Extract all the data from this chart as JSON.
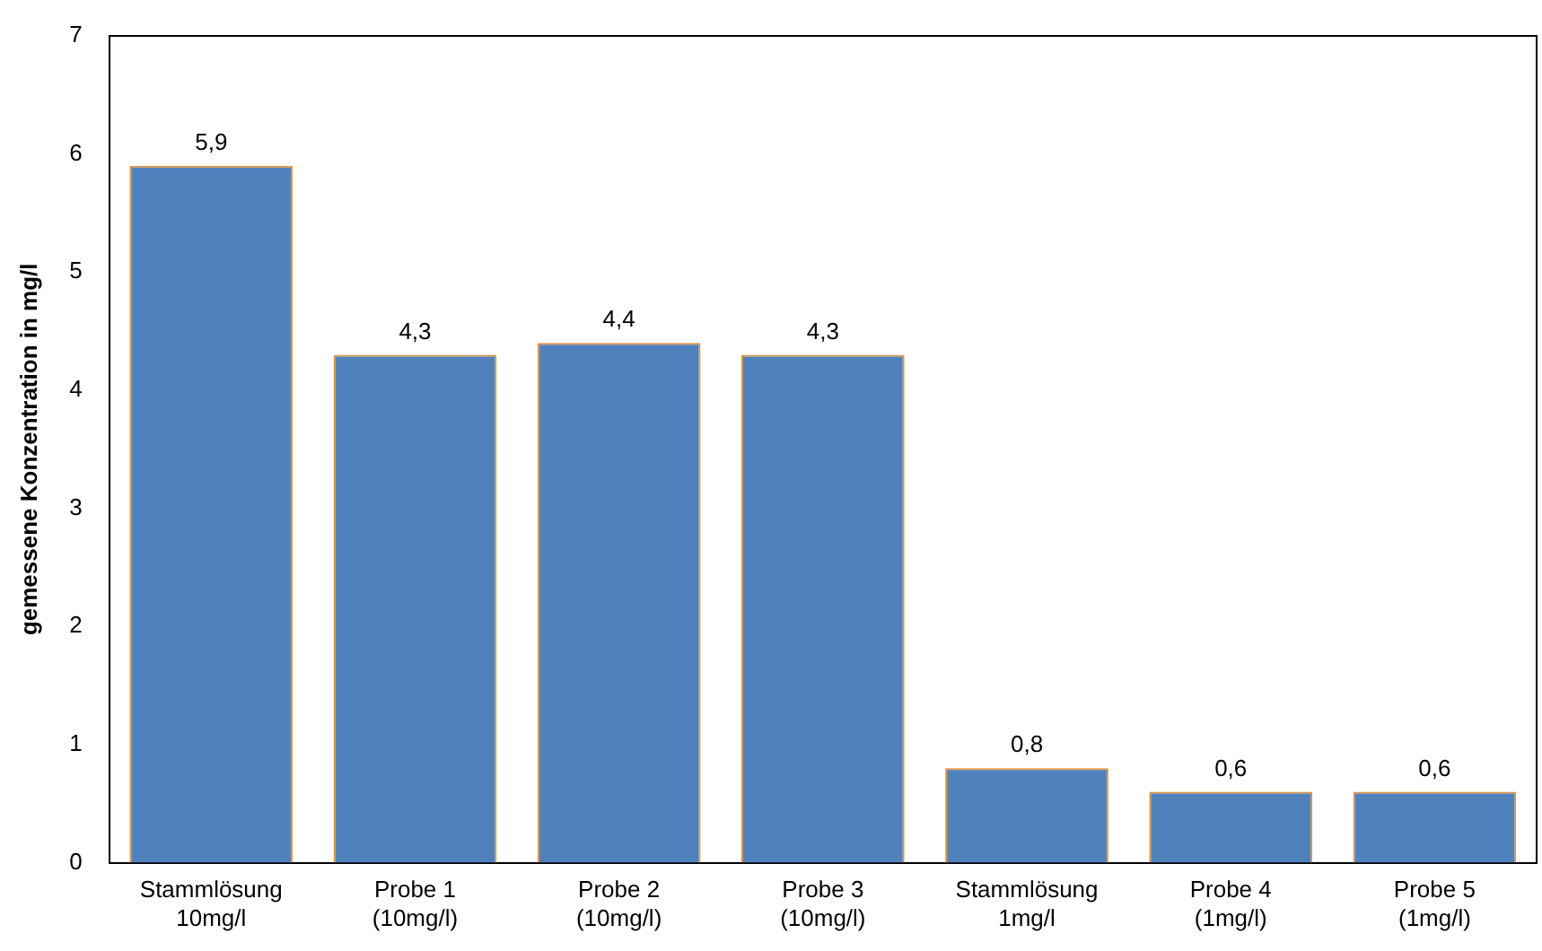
{
  "chart_data": {
    "type": "bar",
    "ylabel": "gemessene Konzentration in mg/l",
    "categories": [
      "Stammlösung\n10mg/l",
      "Probe 1\n(10mg/l)",
      "Probe 2\n(10mg/l)",
      "Probe 3\n(10mg/l)",
      "Stammlösung\n1mg/l",
      "Probe 4\n(1mg/l)",
      "Probe 5\n(1mg/l)"
    ],
    "values": [
      5.9,
      4.3,
      4.4,
      4.3,
      0.8,
      0.6,
      0.6
    ],
    "value_labels": [
      "5,9",
      "4,3",
      "4,4",
      "4,3",
      "0,8",
      "0,6",
      "0,6"
    ],
    "color": "#4f81bd",
    "ylim": [
      0,
      7
    ],
    "yticks": [
      0,
      1,
      2,
      3,
      4,
      5,
      6,
      7
    ],
    "grid": false,
    "legend": false
  }
}
